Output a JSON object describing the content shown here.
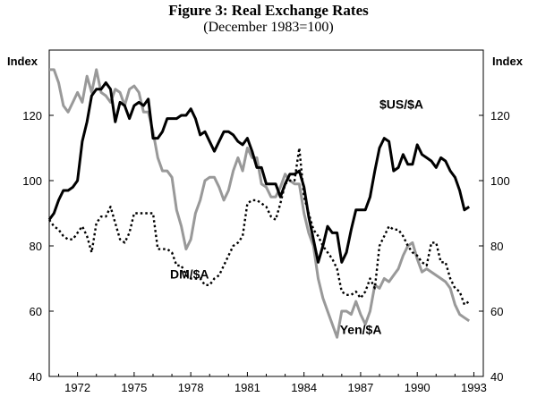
{
  "chart_data": {
    "type": "line",
    "title": "Figure 3: Real Exchange Rates",
    "subtitle": "(December 1983=100)",
    "ylabel_left": "Index",
    "ylabel_right": "Index",
    "ylim": [
      40,
      140
    ],
    "yticks": [
      40,
      60,
      80,
      100,
      120
    ],
    "xlim": [
      1970.5,
      1993.5
    ],
    "xticks": [
      1972,
      1975,
      1978,
      1981,
      1984,
      1987,
      1990,
      1993
    ],
    "grid": false,
    "series": [
      {
        "name": "$US/$A",
        "style": "solid",
        "color": "#000000",
        "label_at": [
          1988.0,
          122
        ],
        "x": [
          1970.5,
          1970.75,
          1971.0,
          1971.25,
          1971.5,
          1971.75,
          1972.0,
          1972.25,
          1972.5,
          1972.75,
          1973.0,
          1973.25,
          1973.5,
          1973.75,
          1974.0,
          1974.25,
          1974.5,
          1974.75,
          1975.0,
          1975.25,
          1975.5,
          1975.75,
          1976.0,
          1976.25,
          1976.5,
          1976.75,
          1977.0,
          1977.25,
          1977.5,
          1977.75,
          1978.0,
          1978.25,
          1978.5,
          1978.75,
          1979.0,
          1979.25,
          1979.5,
          1979.75,
          1980.0,
          1980.25,
          1980.5,
          1980.75,
          1981.0,
          1981.25,
          1981.5,
          1981.75,
          1982.0,
          1982.25,
          1982.5,
          1982.75,
          1983.0,
          1983.25,
          1983.5,
          1983.75,
          1984.0,
          1984.25,
          1984.5,
          1984.75,
          1985.0,
          1985.25,
          1985.5,
          1985.75,
          1986.0,
          1986.25,
          1986.5,
          1986.75,
          1987.0,
          1987.25,
          1987.5,
          1987.75,
          1988.0,
          1988.25,
          1988.5,
          1988.75,
          1989.0,
          1989.25,
          1989.5,
          1989.75,
          1990.0,
          1990.25,
          1990.5,
          1990.75,
          1991.0,
          1991.25,
          1991.5,
          1991.75,
          1992.0,
          1992.25,
          1992.5,
          1992.75
        ],
        "y": [
          88,
          90,
          94,
          97,
          97,
          98,
          100,
          112,
          118,
          126,
          128,
          128,
          130,
          128,
          118,
          124,
          123,
          119,
          123,
          124,
          123,
          125,
          113,
          113,
          115,
          119,
          119,
          119,
          120,
          120,
          122,
          119,
          114,
          115,
          112,
          109,
          112,
          115,
          115,
          114,
          112,
          111,
          113,
          109,
          104,
          104,
          99,
          99,
          99,
          95,
          99,
          102,
          102,
          103,
          98,
          89,
          82,
          75,
          80,
          86,
          84,
          84,
          75,
          78,
          85,
          91,
          91,
          91,
          95,
          103,
          110,
          113,
          112,
          103,
          104,
          108,
          105,
          105,
          111,
          108,
          107,
          106,
          104,
          107,
          106,
          103,
          101,
          97,
          91,
          92
        ]
      },
      {
        "name": "Yen/$A",
        "style": "solid",
        "color": "#999999",
        "label_at": [
          1985.9,
          53
        ],
        "x": [
          1970.5,
          1970.75,
          1971.0,
          1971.25,
          1971.5,
          1971.75,
          1972.0,
          1972.25,
          1972.5,
          1972.75,
          1973.0,
          1973.25,
          1973.5,
          1973.75,
          1974.0,
          1974.25,
          1974.5,
          1974.75,
          1975.0,
          1975.25,
          1975.5,
          1975.75,
          1976.0,
          1976.25,
          1976.5,
          1976.75,
          1977.0,
          1977.25,
          1977.5,
          1977.75,
          1978.0,
          1978.25,
          1978.5,
          1978.75,
          1979.0,
          1979.25,
          1979.5,
          1979.75,
          1980.0,
          1980.25,
          1980.5,
          1980.75,
          1981.0,
          1981.25,
          1981.5,
          1981.75,
          1982.0,
          1982.25,
          1982.5,
          1982.75,
          1983.0,
          1983.25,
          1983.5,
          1983.75,
          1984.0,
          1984.25,
          1984.5,
          1984.75,
          1985.0,
          1985.25,
          1985.5,
          1985.75,
          1986.0,
          1986.25,
          1986.5,
          1986.75,
          1987.0,
          1987.25,
          1987.5,
          1987.75,
          1988.0,
          1988.25,
          1988.5,
          1988.75,
          1989.0,
          1989.25,
          1989.5,
          1989.75,
          1990.0,
          1990.25,
          1990.5,
          1990.75,
          1991.0,
          1991.25,
          1991.5,
          1991.75,
          1992.0,
          1992.25,
          1992.5,
          1992.75
        ],
        "y": [
          134,
          134,
          130,
          123,
          121,
          124,
          127,
          124,
          132,
          127,
          134,
          127,
          126,
          124,
          128,
          127,
          123,
          128,
          129,
          127,
          121,
          121,
          115,
          107,
          103,
          103,
          101,
          91,
          86,
          79,
          82,
          90,
          94,
          100,
          101,
          101,
          98,
          94,
          97,
          103,
          107,
          103,
          110,
          107,
          107,
          99,
          98,
          95,
          95,
          98,
          102,
          100,
          99,
          99,
          90,
          84,
          80,
          70,
          64,
          60,
          56,
          52,
          60,
          60,
          59,
          63,
          59,
          56,
          60,
          68,
          67,
          70,
          69,
          71,
          73,
          77,
          80,
          81,
          76,
          72,
          73,
          72,
          71,
          70,
          69,
          67,
          62,
          59,
          58,
          57
        ]
      },
      {
        "name": "DM/$A",
        "style": "dotted",
        "color": "#000000",
        "label_at": [
          1976.9,
          70
        ],
        "x": [
          1970.5,
          1970.75,
          1971.0,
          1971.25,
          1971.5,
          1971.75,
          1972.0,
          1972.25,
          1972.5,
          1972.75,
          1973.0,
          1973.25,
          1973.5,
          1973.75,
          1974.0,
          1974.25,
          1974.5,
          1974.75,
          1975.0,
          1975.25,
          1975.5,
          1975.75,
          1976.0,
          1976.25,
          1976.5,
          1976.75,
          1977.0,
          1977.25,
          1977.5,
          1977.75,
          1978.0,
          1978.25,
          1978.5,
          1978.75,
          1979.0,
          1979.25,
          1979.5,
          1979.75,
          1980.0,
          1980.25,
          1980.5,
          1980.75,
          1981.0,
          1981.25,
          1981.5,
          1981.75,
          1982.0,
          1982.25,
          1982.5,
          1982.75,
          1983.0,
          1983.25,
          1983.5,
          1983.75,
          1984.0,
          1984.25,
          1984.5,
          1984.75,
          1985.0,
          1985.25,
          1985.5,
          1985.75,
          1986.0,
          1986.25,
          1986.5,
          1986.75,
          1987.0,
          1987.25,
          1987.5,
          1987.75,
          1988.0,
          1988.25,
          1988.5,
          1988.75,
          1989.0,
          1989.25,
          1989.5,
          1989.75,
          1990.0,
          1990.25,
          1990.5,
          1990.75,
          1991.0,
          1991.25,
          1991.5,
          1991.75,
          1992.0,
          1992.25,
          1992.5,
          1992.75
        ],
        "y": [
          88,
          86,
          85,
          83,
          82,
          82,
          84,
          86,
          83,
          78,
          87,
          89,
          89,
          92,
          87,
          82,
          81,
          84,
          90,
          90,
          90,
          90,
          90,
          79,
          79,
          79,
          78,
          74,
          74,
          71,
          70,
          70,
          70,
          68,
          68,
          70,
          71,
          74,
          77,
          80,
          81,
          83,
          93,
          94,
          94,
          93,
          92,
          89,
          88,
          93,
          99,
          100,
          100,
          110,
          95,
          90,
          85,
          83,
          80,
          78,
          76,
          73,
          66,
          65,
          65,
          66,
          64,
          66,
          70,
          67,
          80,
          83,
          86,
          85,
          85,
          83,
          80,
          78,
          77,
          75,
          74,
          81,
          81,
          75,
          75,
          70,
          67,
          66,
          62,
          63
        ]
      }
    ]
  }
}
